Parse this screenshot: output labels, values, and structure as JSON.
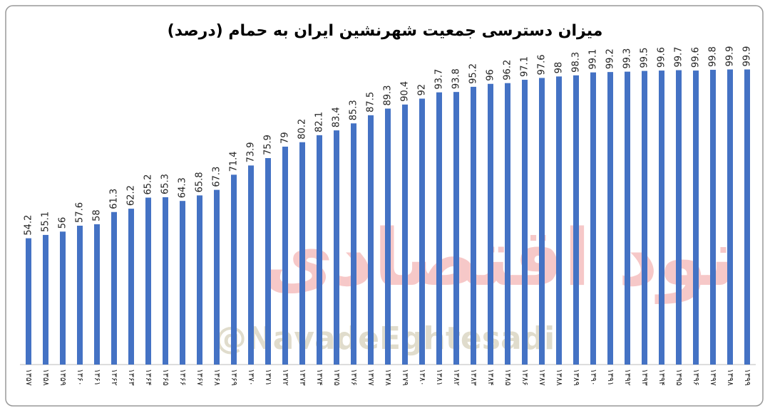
{
  "chart_data": {
    "type": "bar",
    "title": "میزان دسترسی جمعیت شهرنشین ایران به حمام (درصد)",
    "watermark_logo": "نود اقتصادی",
    "watermark_handle": "@NavadeEghtesadi",
    "categories": [
      "۱۳۵۷",
      "۱۳۵۸",
      "۱۳۵۹",
      "۱۳۶۰",
      "۱۳۶۱",
      "۱۳۶۲",
      "۱۳۶۳",
      "۱۳۶۴",
      "۱۳۶۵",
      "۱۳۶۶",
      "۱۳۶۷",
      "۱۳۶۸",
      "۱۳۶۹",
      "۱۳۷۰",
      "۱۳۷۱",
      "۱۳۷۲",
      "۱۳۷۳",
      "۱۳۷۴",
      "۱۳۷۵",
      "۱۳۷۶",
      "۱۳۷۷",
      "۱۳۷۸",
      "۱۳۷۹",
      "۱۳۸۰",
      "۱۳۸۱",
      "۱۳۸۲",
      "۱۳۸۳",
      "۱۳۸۴",
      "۱۳۸۵",
      "۱۳۸۶",
      "۱۳۸۷",
      "۱۳۸۸",
      "۱۳۸۹",
      "۱۳۹۰",
      "۱۳۹۱",
      "۱۳۹۲",
      "۱۳۹۳",
      "۱۳۹۴",
      "۱۳۹۵",
      "۱۳۹۶",
      "۱۳۹۷",
      "۱۳۹۸",
      "۱۳۹۹"
    ],
    "values": [
      54.2,
      55.1,
      56,
      57.6,
      58,
      61.3,
      62.2,
      65.2,
      65.3,
      64.3,
      65.8,
      67.3,
      71.4,
      73.9,
      75.9,
      79,
      80.2,
      82.1,
      83.4,
      85.3,
      87.5,
      89.3,
      90.4,
      92,
      93.7,
      93.8,
      95.2,
      96,
      96.2,
      97.1,
      97.6,
      98,
      98.3,
      99.1,
      99.2,
      99.3,
      99.5,
      99.6,
      99.7,
      99.6,
      99.8,
      99.9,
      99.9
    ],
    "color": "#4472c4",
    "ylim": [
      20,
      100
    ]
  }
}
